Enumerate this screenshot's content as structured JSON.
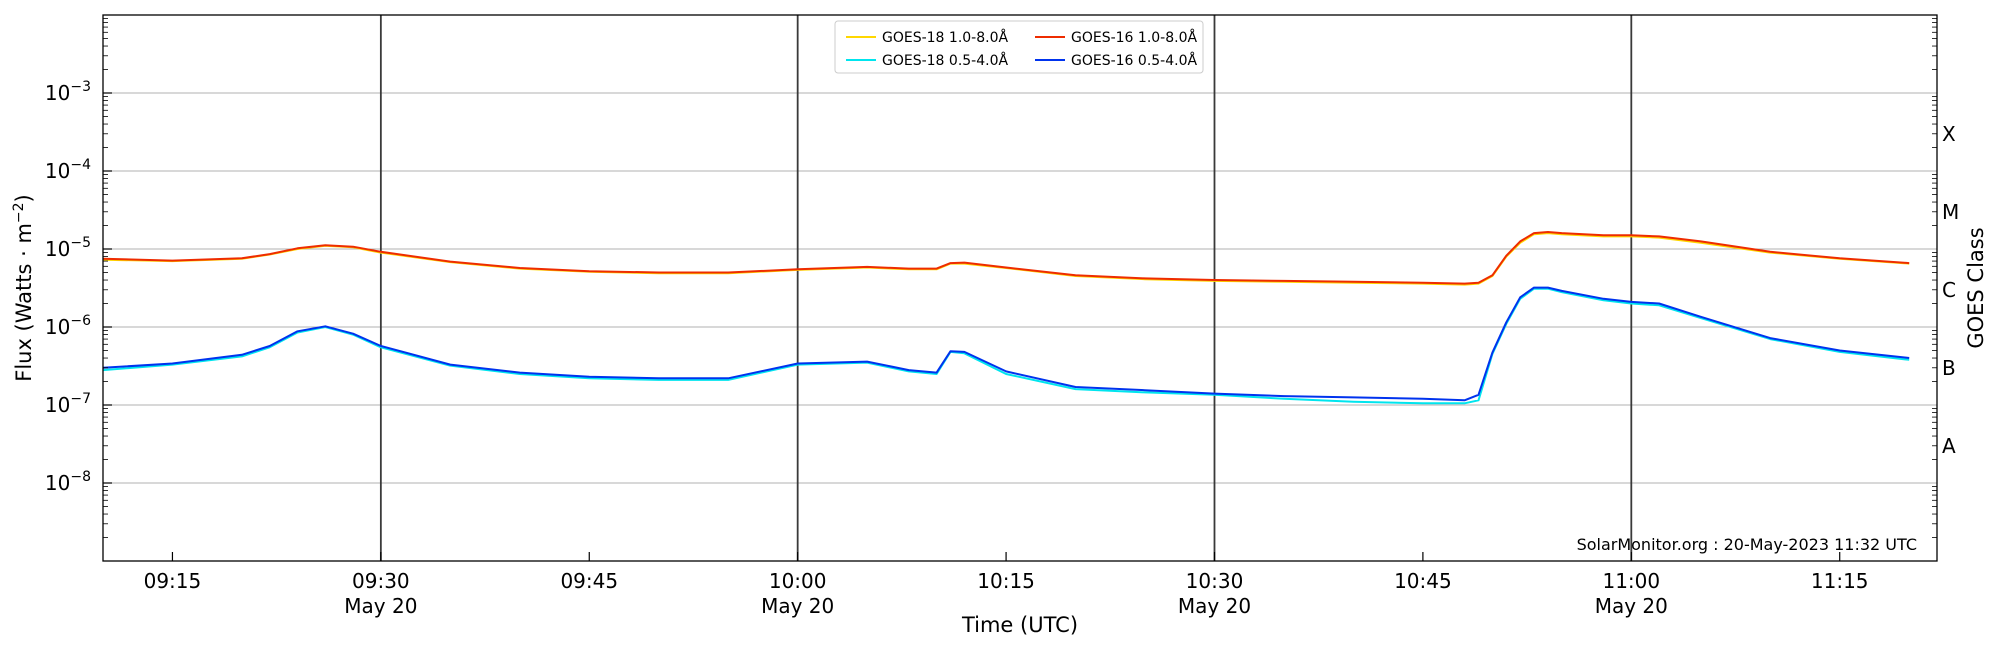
{
  "chart_data": {
    "type": "line",
    "xlabel": "Time (UTC)",
    "ylabel_prefix": "Flux (Watts · m",
    "ylabel_exponent": "−2",
    "ylabel_suffix": ")",
    "right_label": "GOES Class",
    "credit": "SolarMonitor.org : 20-May-2023 11:32 UTC",
    "yscale": "log",
    "ylim": [
      1e-09,
      0.01
    ],
    "xlim_minutes": [
      9.1667,
      11.3667
    ],
    "grid": "horizontal",
    "legend_position": "top-center",
    "y_ticks": [
      {
        "value": 1e-08,
        "base": "10",
        "exp": "−8"
      },
      {
        "value": 1e-07,
        "base": "10",
        "exp": "−7"
      },
      {
        "value": 1e-06,
        "base": "10",
        "exp": "−6"
      },
      {
        "value": 1e-05,
        "base": "10",
        "exp": "−5"
      },
      {
        "value": 0.0001,
        "base": "10",
        "exp": "−4"
      },
      {
        "value": 0.001,
        "base": "10",
        "exp": "−3"
      }
    ],
    "x_ticks": [
      {
        "time": "09:15",
        "hours": 9.25,
        "date": ""
      },
      {
        "time": "09:30",
        "hours": 9.5,
        "date": "May 20"
      },
      {
        "time": "09:45",
        "hours": 9.75,
        "date": ""
      },
      {
        "time": "10:00",
        "hours": 10.0,
        "date": "May 20"
      },
      {
        "time": "10:15",
        "hours": 10.25,
        "date": ""
      },
      {
        "time": "10:30",
        "hours": 10.5,
        "date": "May 20"
      },
      {
        "time": "10:45",
        "hours": 10.75,
        "date": ""
      },
      {
        "time": "11:00",
        "hours": 11.0,
        "date": "May 20"
      },
      {
        "time": "11:15",
        "hours": 11.25,
        "date": ""
      }
    ],
    "vertical_lines_hours": [
      9.5,
      10.0,
      10.5,
      11.0
    ],
    "classes": [
      {
        "label": "A",
        "flux": 3e-08
      },
      {
        "label": "B",
        "flux": 3e-07
      },
      {
        "label": "C",
        "flux": 3e-06
      },
      {
        "label": "M",
        "flux": 3e-05
      },
      {
        "label": "X",
        "flux": 0.0003
      }
    ],
    "times": [
      "09:10",
      "09:15",
      "09:20",
      "09:22",
      "09:24",
      "09:26",
      "09:28",
      "09:30",
      "09:35",
      "09:40",
      "09:45",
      "09:50",
      "09:55",
      "10:00",
      "10:05",
      "10:08",
      "10:10",
      "10:11",
      "10:12",
      "10:15",
      "10:20",
      "10:25",
      "10:30",
      "10:35",
      "10:40",
      "10:45",
      "10:48",
      "10:49",
      "10:50",
      "10:51",
      "10:52",
      "10:53",
      "10:54",
      "10:55",
      "10:58",
      "11:00",
      "11:02",
      "11:05",
      "11:10",
      "11:15",
      "11:20"
    ],
    "series": [
      {
        "name": "GOES-18 1.0-8.0Å",
        "color": "#ffd700",
        "values": [
          7.3e-06,
          7e-06,
          7.5e-06,
          8.5e-06,
          1e-05,
          1.1e-05,
          1.05e-05,
          9e-06,
          6.8e-06,
          5.6e-06,
          5.1e-06,
          4.9e-06,
          4.9e-06,
          5.4e-06,
          5.8e-06,
          5.5e-06,
          5.5e-06,
          6.5e-06,
          6.5e-06,
          5.7e-06,
          4.5e-06,
          4.1e-06,
          3.9e-06,
          3.8e-06,
          3.7e-06,
          3.6e-06,
          3.5e-06,
          3.6e-06,
          4.5e-06,
          8e-06,
          1.2e-05,
          1.55e-05,
          1.6e-05,
          1.55e-05,
          1.45e-05,
          1.45e-05,
          1.4e-05,
          1.2e-05,
          9e-06,
          7.5e-06,
          6.5e-06
        ]
      },
      {
        "name": "GOES-18 0.5-4.0Å",
        "color": "#00e5ee",
        "values": [
          2.8e-07,
          3.3e-07,
          4.2e-07,
          5.5e-07,
          8.5e-07,
          1e-06,
          8e-07,
          5.5e-07,
          3.2e-07,
          2.5e-07,
          2.2e-07,
          2.1e-07,
          2.1e-07,
          3.3e-07,
          3.5e-07,
          2.7e-07,
          2.5e-07,
          4.8e-07,
          4.6e-07,
          2.5e-07,
          1.6e-07,
          1.45e-07,
          1.35e-07,
          1.2e-07,
          1.1e-07,
          1.05e-07,
          1.05e-07,
          1.15e-07,
          4.5e-07,
          1.1e-06,
          2.3e-06,
          3.1e-06,
          3.1e-06,
          2.8e-06,
          2.2e-06,
          2e-06,
          1.9e-06,
          1.3e-06,
          7e-07,
          4.8e-07,
          3.8e-07
        ]
      },
      {
        "name": "GOES-16 1.0-8.0Å",
        "color": "#ee2c00",
        "values": [
          7.5e-06,
          7.1e-06,
          7.6e-06,
          8.6e-06,
          1.02e-05,
          1.12e-05,
          1.07e-05,
          9.2e-06,
          6.9e-06,
          5.7e-06,
          5.2e-06,
          5e-06,
          5e-06,
          5.5e-06,
          5.9e-06,
          5.6e-06,
          5.6e-06,
          6.6e-06,
          6.7e-06,
          5.8e-06,
          4.6e-06,
          4.2e-06,
          4e-06,
          3.9e-06,
          3.8e-06,
          3.7e-06,
          3.6e-06,
          3.7e-06,
          4.6e-06,
          8.2e-06,
          1.25e-05,
          1.6e-05,
          1.65e-05,
          1.6e-05,
          1.5e-05,
          1.5e-05,
          1.45e-05,
          1.25e-05,
          9.2e-06,
          7.6e-06,
          6.6e-06
        ]
      },
      {
        "name": "GOES-16 0.5-4.0Å",
        "color": "#0033ee",
        "values": [
          3e-07,
          3.4e-07,
          4.4e-07,
          5.7e-07,
          8.8e-07,
          1.02e-06,
          8.2e-07,
          5.7e-07,
          3.3e-07,
          2.6e-07,
          2.3e-07,
          2.2e-07,
          2.2e-07,
          3.4e-07,
          3.6e-07,
          2.8e-07,
          2.6e-07,
          4.9e-07,
          4.8e-07,
          2.7e-07,
          1.7e-07,
          1.55e-07,
          1.4e-07,
          1.3e-07,
          1.25e-07,
          1.2e-07,
          1.15e-07,
          1.35e-07,
          4.7e-07,
          1.15e-06,
          2.4e-06,
          3.2e-06,
          3.2e-06,
          2.9e-06,
          2.3e-06,
          2.1e-06,
          2e-06,
          1.35e-06,
          7.2e-07,
          5e-07,
          4e-07
        ]
      }
    ]
  }
}
